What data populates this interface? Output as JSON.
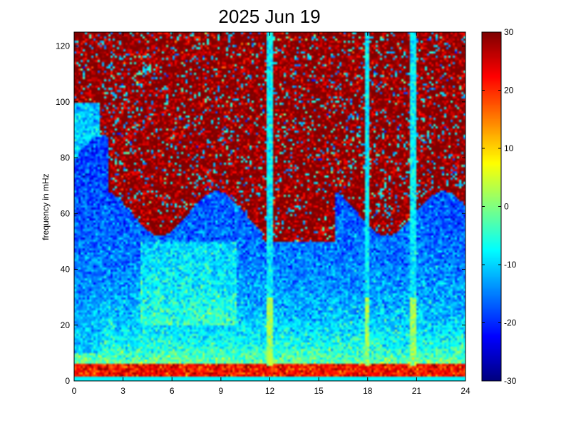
{
  "chart_data": {
    "type": "heatmap",
    "title": "2025 Jun 19",
    "xlabel": "",
    "ylabel": "frequency in mHz",
    "xlim": [
      0,
      24
    ],
    "ylim": [
      0,
      125
    ],
    "x_ticks": [
      "0",
      "3",
      "6",
      "9",
      "12",
      "15",
      "18",
      "21",
      "24"
    ],
    "x_tick_values": [
      0,
      3,
      6,
      9,
      12,
      15,
      18,
      21,
      24
    ],
    "y_ticks": [
      "0",
      "20",
      "40",
      "60",
      "80",
      "100",
      "120"
    ],
    "y_tick_values": [
      0,
      20,
      40,
      60,
      80,
      100,
      120
    ],
    "colorbar": {
      "colormap": "jet",
      "range": [
        -30,
        30
      ],
      "ticks": [
        "30",
        "20",
        "10",
        "0",
        "-10",
        "-20",
        "-30"
      ],
      "tick_values": [
        30,
        20,
        10,
        0,
        -10,
        -20,
        -30
      ]
    },
    "grid": false,
    "features": {
      "spikes_hours": [
        12.0,
        18.0,
        20.8
      ],
      "background_floor_freq_mHz": 60
    }
  }
}
